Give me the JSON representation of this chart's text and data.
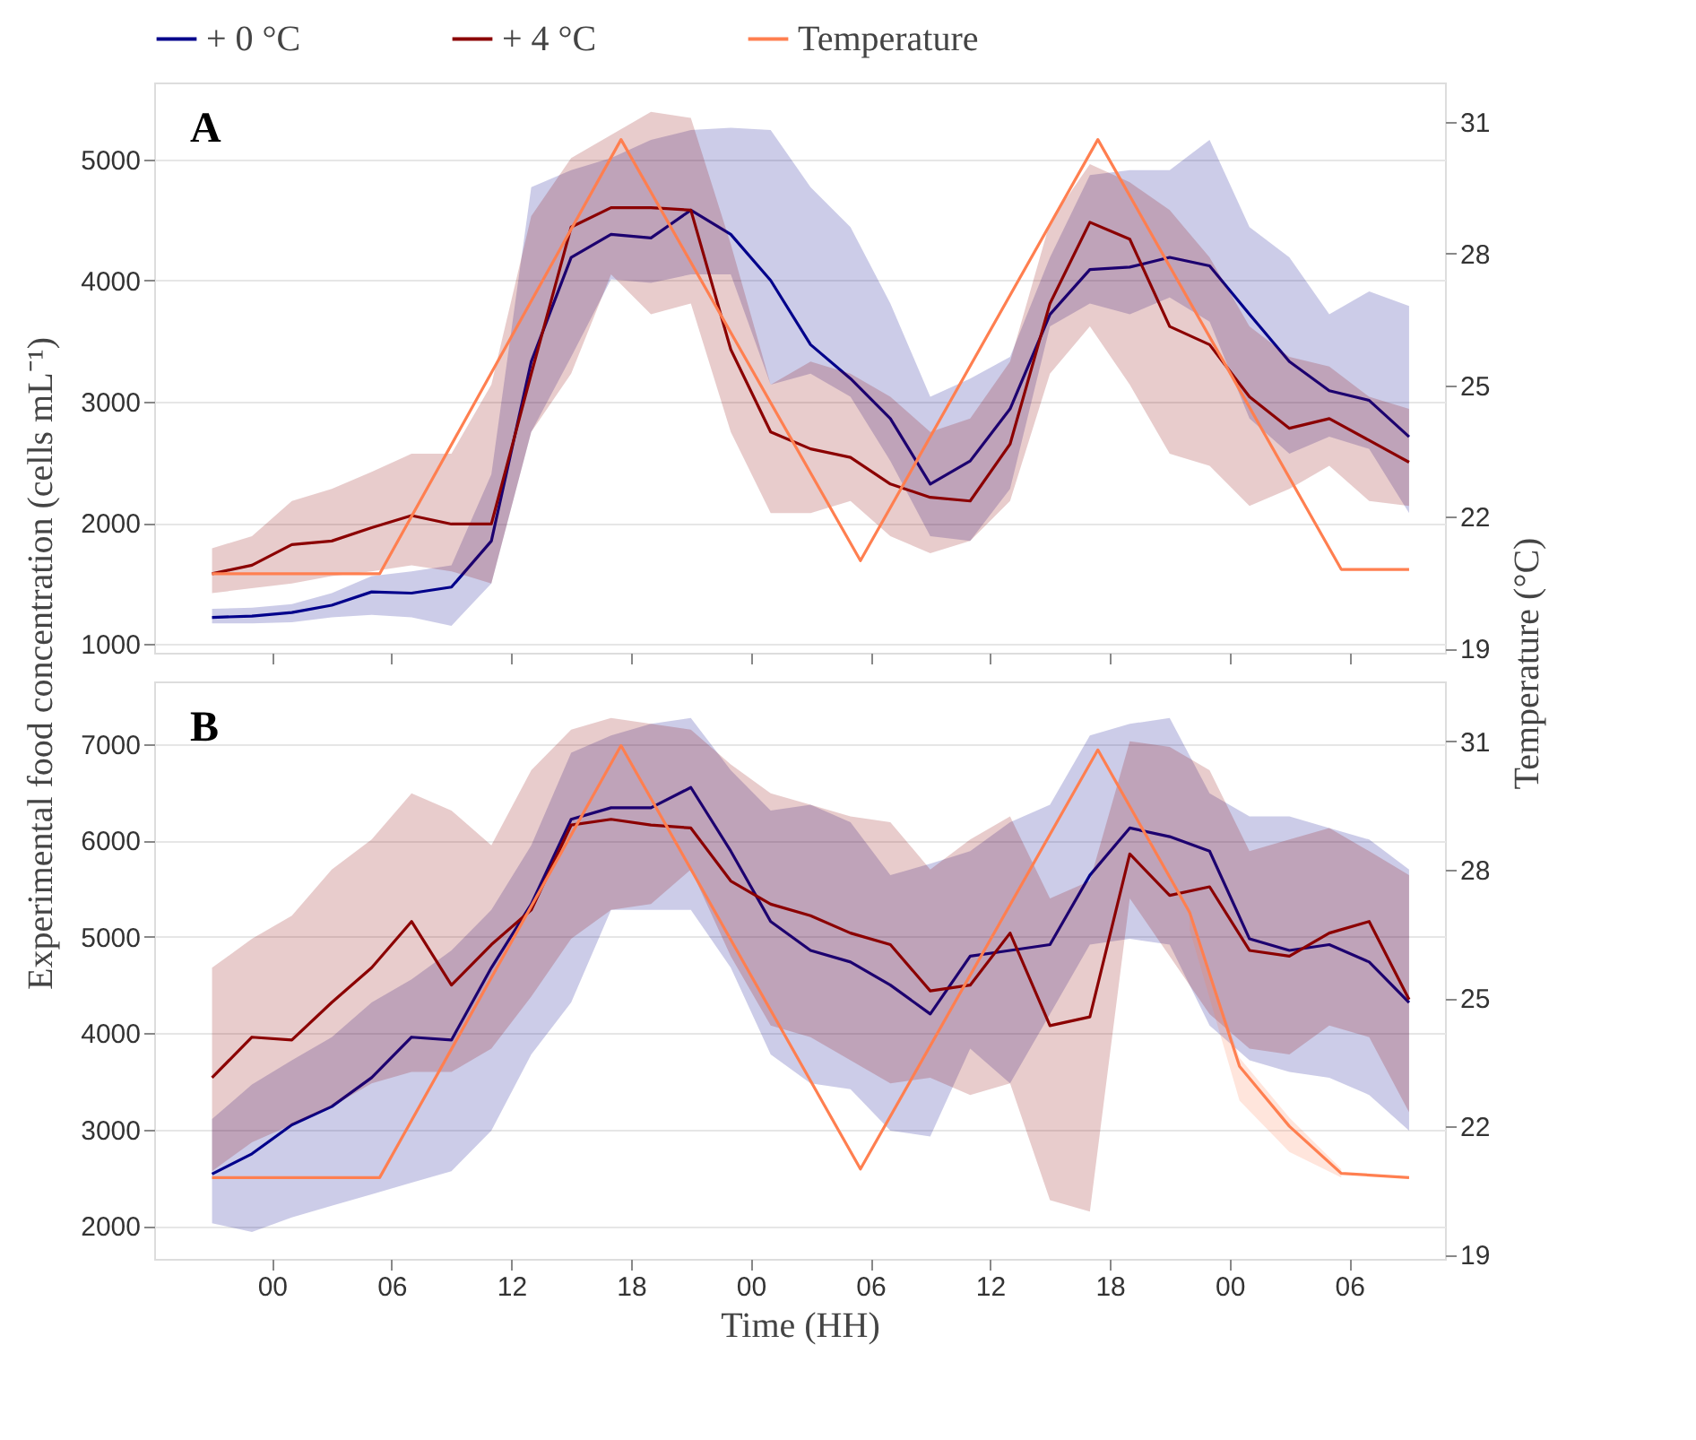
{
  "chart_data": [
    {
      "type": "line",
      "annotations": [
        "A"
      ],
      "ylabel": "Experimental  food concentration (cells mL⁻¹)",
      "y2label": "Temperature (°C)",
      "legend": "top",
      "grid": "y",
      "tick_labels": "y",
      "x": [
        -3,
        -1,
        1,
        3,
        5,
        7,
        9,
        11,
        13,
        15,
        17,
        19,
        21,
        23,
        25,
        27,
        29,
        31,
        33,
        35,
        37,
        39,
        41,
        43,
        45,
        47,
        49,
        51,
        53,
        55,
        57
      ],
      "xlim": [
        -5.9,
        58.8
      ],
      "xticks": [
        {
          "value": 0,
          "label": null
        },
        {
          "value": 6,
          "label": null
        },
        {
          "value": 12,
          "label": null
        },
        {
          "value": 18,
          "label": null
        },
        {
          "value": 24,
          "label": null
        },
        {
          "value": 30,
          "label": null
        },
        {
          "value": 36,
          "label": null
        },
        {
          "value": 42,
          "label": null
        },
        {
          "value": 48,
          "label": null
        },
        {
          "value": 54,
          "label": null
        }
      ],
      "ylim": [
        928,
        5633
      ],
      "yticks": [
        1000,
        2000,
        3000,
        4000,
        5000
      ],
      "y2lim": [
        18.9,
        31.9
      ],
      "y2ticks": [
        19,
        22,
        25,
        28,
        31
      ],
      "series": [
        {
          "name": "+ 0 °C",
          "color": "#00008b",
          "values": [
            1220,
            1230,
            1260,
            1320,
            1430,
            1420,
            1470,
            1850,
            3330,
            4190,
            4380,
            4350,
            4580,
            4380,
            4000,
            3470,
            3190,
            2860,
            2320,
            2510,
            2940,
            3720,
            4090,
            4110,
            4190,
            4120,
            3720,
            3330,
            3090,
            3010,
            2710
          ],
          "lower": [
            1170,
            1170,
            1180,
            1220,
            1240,
            1220,
            1150,
            1500,
            2750,
            3370,
            4010,
            3980,
            4050,
            4050,
            3140,
            3230,
            3040,
            2510,
            1890,
            1850,
            2280,
            3620,
            3810,
            3720,
            3860,
            3660,
            2860,
            2570,
            2710,
            2610,
            2080
          ],
          "upper": [
            1290,
            1300,
            1330,
            1420,
            1560,
            1600,
            1650,
            2400,
            4770,
            4910,
            5010,
            5160,
            5240,
            5260,
            5240,
            4770,
            4440,
            3810,
            3040,
            3190,
            3370,
            4190,
            4870,
            4910,
            4910,
            5160,
            4440,
            4190,
            3720,
            3910,
            3790
          ]
        },
        {
          "name": "+ 4 °C",
          "color": "#8b0000",
          "values": [
            1580,
            1650,
            1820,
            1850,
            1960,
            2060,
            1990,
            1990,
            3230,
            4440,
            4600,
            4600,
            4580,
            3430,
            2750,
            2610,
            2540,
            2320,
            2210,
            2180,
            2650,
            3810,
            4480,
            4340,
            3620,
            3470,
            3040,
            2780,
            2860,
            2680,
            2500
          ],
          "lower": [
            1420,
            1460,
            1500,
            1560,
            1600,
            1650,
            1600,
            1500,
            2750,
            3230,
            4050,
            3720,
            3810,
            2750,
            2080,
            2080,
            2180,
            1890,
            1750,
            1850,
            2180,
            3230,
            3620,
            3140,
            2570,
            2470,
            2140,
            2280,
            2470,
            2180,
            2140
          ],
          "upper": [
            1790,
            1890,
            2180,
            2280,
            2420,
            2570,
            2570,
            3140,
            4530,
            5010,
            5200,
            5390,
            5340,
            4300,
            3140,
            3330,
            3230,
            3040,
            2750,
            2860,
            3330,
            4480,
            4960,
            4810,
            4580,
            4190,
            3620,
            3370,
            3290,
            3040,
            2940
          ]
        },
        {
          "name": "Temperature",
          "color": "#ff7f50",
          "axis": "y2",
          "x": [
            -3,
            5.4,
            17.5,
            29.5,
            41.4,
            53.6,
            57
          ],
          "values": [
            20.7,
            20.7,
            30.6,
            21.0,
            30.6,
            20.8,
            20.8
          ]
        }
      ]
    },
    {
      "type": "line",
      "annotations": [
        "B"
      ],
      "xlabel": "Time (HH)",
      "grid": "y",
      "x": [
        -3,
        -1,
        1,
        3,
        5,
        7,
        9,
        11,
        13,
        15,
        17,
        19,
        21,
        23,
        25,
        27,
        29,
        31,
        33,
        35,
        37,
        39,
        41,
        43,
        45,
        47,
        49,
        51,
        53,
        55,
        57
      ],
      "xlim": [
        -5.9,
        58.8
      ],
      "xticks": [
        {
          "value": 0,
          "label": "00"
        },
        {
          "value": 6,
          "label": "06"
        },
        {
          "value": 12,
          "label": "12"
        },
        {
          "value": 18,
          "label": "18"
        },
        {
          "value": 24,
          "label": "00"
        },
        {
          "value": 30,
          "label": "06"
        },
        {
          "value": 36,
          "label": "12"
        },
        {
          "value": 42,
          "label": "18"
        },
        {
          "value": 48,
          "label": "00"
        },
        {
          "value": 54,
          "label": "06"
        }
      ],
      "ylim": [
        1660,
        7650
      ],
      "yticks": [
        2000,
        3000,
        4000,
        5000,
        6000,
        7000
      ],
      "y2lim": [
        18.9,
        32.4
      ],
      "y2ticks": [
        19,
        22,
        25,
        28,
        31
      ],
      "series": [
        {
          "color": "#00008b",
          "values": [
            2540,
            2750,
            3050,
            3240,
            3540,
            3960,
            3930,
            4680,
            5340,
            6220,
            6340,
            6340,
            6550,
            5890,
            5160,
            4860,
            4740,
            4500,
            4200,
            4800,
            4860,
            4920,
            5640,
            6130,
            6040,
            5890,
            4980,
            4860,
            4920,
            4740,
            4320
          ],
          "lower": [
            2030,
            1940,
            2090,
            2210,
            2330,
            2450,
            2570,
            2990,
            3780,
            4320,
            5280,
            5280,
            5280,
            4680,
            3780,
            3480,
            3420,
            2990,
            2930,
            3840,
            3480,
            4200,
            4920,
            4980,
            4920,
            4080,
            3720,
            3600,
            3540,
            3360,
            2990
          ],
          "upper": [
            3110,
            3470,
            3720,
            3960,
            4320,
            4560,
            4860,
            5280,
            5950,
            6910,
            7090,
            7210,
            7270,
            6730,
            6310,
            6370,
            6190,
            5640,
            5760,
            5890,
            6190,
            6370,
            7090,
            7210,
            7270,
            6490,
            6250,
            6250,
            6130,
            6010,
            5700
          ]
        },
        {
          "color": "#8b0000",
          "values": [
            3540,
            3960,
            3930,
            4320,
            4680,
            5160,
            4500,
            4920,
            5280,
            6160,
            6220,
            6160,
            6130,
            5580,
            5340,
            5220,
            5040,
            4920,
            4440,
            4500,
            5040,
            4080,
            4170,
            5860,
            5430,
            5520,
            4860,
            4800,
            5040,
            5160,
            4350
          ],
          "lower": [
            2570,
            2870,
            3050,
            3240,
            3480,
            3600,
            3600,
            3840,
            4380,
            4980,
            5280,
            5340,
            5700,
            4800,
            4080,
            3960,
            3720,
            3480,
            3540,
            3360,
            3480,
            2270,
            2150,
            5400,
            4800,
            4200,
            3840,
            3780,
            4080,
            3960,
            3180
          ],
          "upper": [
            4680,
            4980,
            5220,
            5700,
            6010,
            6490,
            6310,
            5950,
            6730,
            7150,
            7270,
            7210,
            7150,
            6790,
            6490,
            6370,
            6250,
            6190,
            5700,
            6010,
            6250,
            5400,
            5580,
            7030,
            6970,
            6730,
            5890,
            6010,
            6130,
            5890,
            5640
          ]
        },
        {
          "color": "#ff7f50",
          "axis": "y2",
          "x": [
            -3,
            5.4,
            17.5,
            29.5,
            41.4,
            46,
            48.5,
            51,
            53.6,
            57
          ],
          "values": [
            20.8,
            20.8,
            30.9,
            21.0,
            30.8,
            27.0,
            23.4,
            22.0,
            20.9,
            20.8
          ],
          "lower": [
            null,
            null,
            null,
            null,
            null,
            26.6,
            22.6,
            21.4,
            20.8,
            null
          ],
          "upper": [
            null,
            null,
            null,
            null,
            null,
            27.0,
            23.6,
            22.2,
            21.0,
            null
          ]
        }
      ]
    }
  ]
}
